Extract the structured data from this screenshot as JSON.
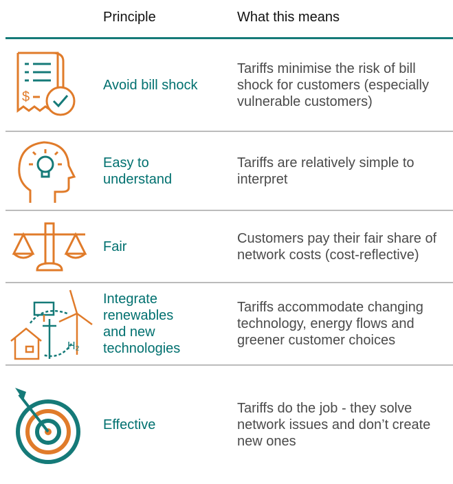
{
  "table": {
    "header": [
      "Principle",
      "What this means"
    ],
    "rows": [
      {
        "principle": "Avoid bill shock",
        "description": "Tariffs minimise the risk of bill shock for customers (especially vulnerable customers)"
      },
      {
        "principle": "Easy to understand",
        "description": "Tariffs are relatively simple to interpret"
      },
      {
        "principle": "Fair",
        "description": "Customers pay their fair share of network costs (cost-reflective)"
      },
      {
        "principle": "Integrate renewables and new technologies",
        "description": "Tariffs accommodate changing technology, energy flows and greener customer choices"
      },
      {
        "principle": "Effective",
        "description": "Tariffs do the job - they solve network issues and don’t create new ones"
      }
    ]
  }
}
